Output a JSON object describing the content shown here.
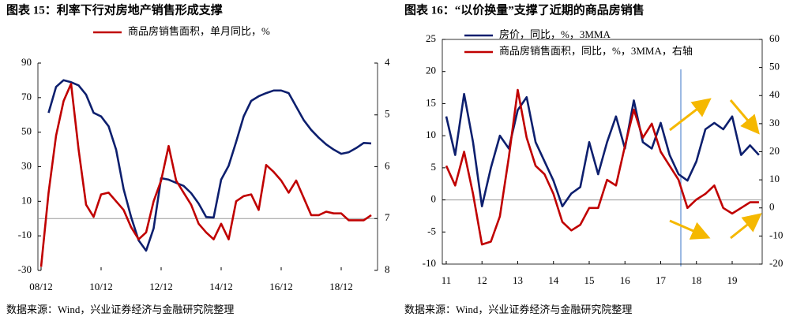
{
  "chart_data": [
    {
      "type": "line",
      "title": "图表 15：利率下行对房地产销售形成支撑",
      "source": "数据来源：Wind，兴业证券经济与金融研究院整理",
      "x": [
        "08/12",
        "09/03",
        "09/06",
        "09/09",
        "09/12",
        "10/03",
        "10/06",
        "10/09",
        "10/12",
        "11/03",
        "11/06",
        "11/09",
        "11/12",
        "12/03",
        "12/06",
        "12/09",
        "12/12",
        "13/03",
        "13/06",
        "13/09",
        "13/12",
        "14/03",
        "14/06",
        "14/09",
        "14/12",
        "15/03",
        "15/06",
        "15/09",
        "15/12",
        "16/03",
        "16/06",
        "16/09",
        "16/12",
        "17/03",
        "17/06",
        "17/09",
        "17/12",
        "18/03",
        "18/06",
        "18/09",
        "18/12",
        "19/03",
        "19/06",
        "19/09",
        "19/12"
      ],
      "xticks": [
        "08/12",
        "10/12",
        "12/12",
        "14/12",
        "16/12",
        "18/12"
      ],
      "ylim": [
        -30,
        90
      ],
      "yticks": [
        -30,
        -10,
        10,
        30,
        50,
        70,
        90
      ],
      "y2lim": [
        4,
        8
      ],
      "y2ticks": [
        4,
        5,
        6,
        7,
        8
      ],
      "y2_inverted": true,
      "series": [
        {
          "color": "#0d1f6e",
          "axis": "y2",
          "values": [
            null,
            4.96,
            4.46,
            4.33,
            4.37,
            4.43,
            4.61,
            4.96,
            5.03,
            5.22,
            5.67,
            6.43,
            6.97,
            7.42,
            7.62,
            7.19,
            6.22,
            6.25,
            6.31,
            6.37,
            6.51,
            6.71,
            6.97,
            6.98,
            6.25,
            5.98,
            5.52,
            5.03,
            4.73,
            4.64,
            4.58,
            4.53,
            4.53,
            4.58,
            4.84,
            5.1,
            5.29,
            5.44,
            5.57,
            5.67,
            5.75,
            5.72,
            5.64,
            5.54,
            5.55
          ]
        },
        {
          "name": "商品房销售面积，单月同比，%",
          "color": "#c00000",
          "values": [
            -28,
            15,
            48,
            68,
            78,
            40,
            8,
            1,
            14,
            15,
            10,
            5,
            -5,
            -12,
            -8,
            10,
            22,
            42,
            22,
            15,
            8,
            -3,
            -8,
            -12,
            -3,
            -12,
            10,
            13,
            14,
            5,
            31,
            27,
            22,
            15,
            22,
            12,
            2,
            2,
            4,
            3,
            3,
            -1,
            -1,
            -1,
            2
          ]
        }
      ]
    },
    {
      "type": "line",
      "title": "图表 16：“以价换量”支撑了近期的商品房销售",
      "source": "数据来源：Wind，兴业证券经济与金融研究院整理",
      "x": [
        11,
        11.25,
        11.5,
        11.75,
        12,
        12.25,
        12.5,
        12.75,
        13,
        13.25,
        13.5,
        13.75,
        14,
        14.25,
        14.5,
        14.75,
        15,
        15.25,
        15.5,
        15.75,
        16,
        16.25,
        16.5,
        16.75,
        17,
        17.25,
        17.5,
        17.75,
        18,
        18.25,
        18.5,
        18.75,
        19,
        19.25,
        19.5,
        19.75
      ],
      "xlim": [
        10.89,
        19.84
      ],
      "xticks": [
        11,
        12,
        13,
        14,
        15,
        16,
        17,
        18,
        19
      ],
      "ylim": [
        -10,
        25
      ],
      "yticks": [
        -10,
        -5,
        0,
        5,
        10,
        15,
        20,
        25
      ],
      "y2lim": [
        -20,
        60
      ],
      "y2ticks": [
        -20,
        -10,
        0,
        10,
        20,
        30,
        40,
        50,
        60
      ],
      "series": [
        {
          "name": "房价，同比，%，3MMA",
          "color": "#0d1f6e",
          "values": [
            13,
            7,
            16.5,
            9,
            -1,
            5,
            10,
            8,
            14,
            16,
            9,
            6,
            3,
            -1,
            1,
            2,
            9,
            4,
            9,
            13,
            8,
            15.5,
            9,
            8,
            12,
            7,
            4,
            3,
            6,
            11,
            12,
            11,
            13,
            7,
            8.5,
            7
          ]
        },
        {
          "name": "商品房销售面积，同比，%，3MMA，右轴",
          "color": "#c00000",
          "axis": "y2",
          "values": [
            15,
            8,
            20,
            5,
            -13,
            -12,
            -3,
            18,
            42,
            25,
            15,
            12,
            5,
            -5,
            -8,
            -6,
            0,
            0,
            10,
            8,
            22,
            35,
            25,
            30,
            20,
            15,
            10,
            0,
            3,
            5,
            8,
            0,
            -2,
            0,
            2,
            2
          ]
        }
      ]
    }
  ]
}
